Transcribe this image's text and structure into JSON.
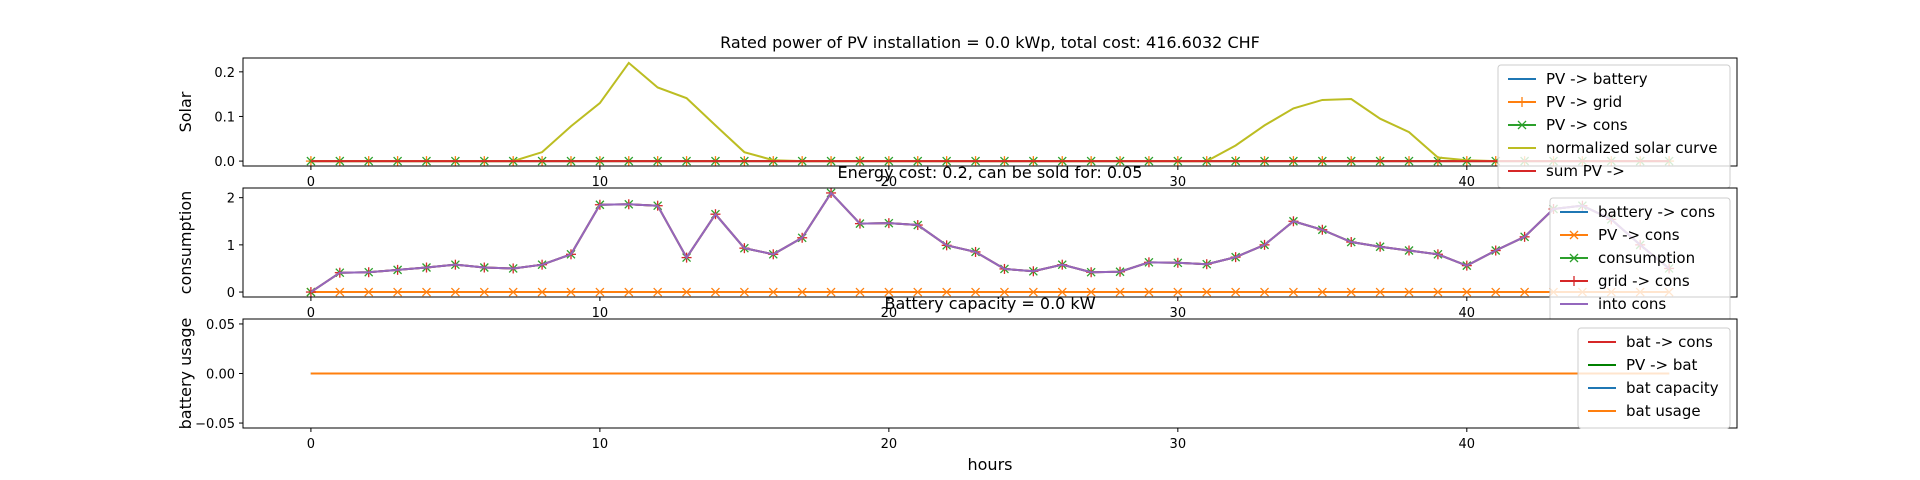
{
  "chart_data": [
    {
      "id": "solar",
      "type": "line",
      "title": "Rated power of PV installation = 0.0 kWp, total cost: 416.6032 CHF",
      "ylabel": "Solar",
      "xlabel": "",
      "xlim": [
        -2.35,
        49.35
      ],
      "ylim": [
        -0.011,
        0.231
      ],
      "xticks": [
        0,
        10,
        20,
        30,
        40
      ],
      "yticks": [
        0.0,
        0.1,
        0.2
      ],
      "ytick_labels": [
        "0.0",
        "0.1",
        "0.2"
      ],
      "legend": "upper-right",
      "series": [
        {
          "name": "PV -> battery",
          "color": "#1f77b4",
          "marker": "none",
          "y": [
            0,
            0,
            0,
            0,
            0,
            0,
            0,
            0,
            0,
            0,
            0,
            0,
            0,
            0,
            0,
            0,
            0,
            0,
            0,
            0,
            0,
            0,
            0,
            0,
            0,
            0,
            0,
            0,
            0,
            0,
            0,
            0,
            0,
            0,
            0,
            0,
            0,
            0,
            0,
            0,
            0,
            0,
            0,
            0,
            0,
            0,
            0,
            0
          ]
        },
        {
          "name": "PV -> grid",
          "color": "#ff7f0e",
          "marker": "plus",
          "y": [
            0,
            0,
            0,
            0,
            0,
            0,
            0,
            0,
            0,
            0,
            0,
            0,
            0,
            0,
            0,
            0,
            0,
            0,
            0,
            0,
            0,
            0,
            0,
            0,
            0,
            0,
            0,
            0,
            0,
            0,
            0,
            0,
            0,
            0,
            0,
            0,
            0,
            0,
            0,
            0,
            0,
            0,
            0,
            0,
            0,
            0,
            0,
            0
          ]
        },
        {
          "name": "PV -> cons",
          "color": "#2ca02c",
          "marker": "x",
          "y": [
            0,
            0,
            0,
            0,
            0,
            0,
            0,
            0,
            0,
            0,
            0,
            0,
            0,
            0,
            0,
            0,
            0,
            0,
            0,
            0,
            0,
            0,
            0,
            0,
            0,
            0,
            0,
            0,
            0,
            0,
            0,
            0,
            0,
            0,
            0,
            0,
            0,
            0,
            0,
            0,
            0,
            0,
            0,
            0,
            0,
            0,
            0,
            0
          ]
        },
        {
          "name": "normalized solar curve",
          "color": "#bcbd22",
          "marker": "none",
          "y": [
            0,
            0,
            0,
            0,
            0,
            0,
            0,
            0,
            0.02,
            0.078,
            0.13,
            0.22,
            0.165,
            0.141,
            0.08,
            0.02,
            0.002,
            0,
            0,
            0,
            0,
            0,
            0,
            0,
            0,
            0,
            0,
            0,
            0,
            0,
            0,
            0,
            0.035,
            0.08,
            0.118,
            0.137,
            0.139,
            0.095,
            0.065,
            0.008,
            0.002,
            0,
            0,
            0,
            0,
            0,
            0,
            0
          ]
        },
        {
          "name": "sum PV ->",
          "color": "#d62728",
          "marker": "none",
          "y": [
            0,
            0,
            0,
            0,
            0,
            0,
            0,
            0,
            0,
            0,
            0,
            0,
            0,
            0,
            0,
            0,
            0,
            0,
            0,
            0,
            0,
            0,
            0,
            0,
            0,
            0,
            0,
            0,
            0,
            0,
            0,
            0,
            0,
            0,
            0,
            0,
            0,
            0,
            0,
            0,
            0,
            0,
            0,
            0,
            0,
            0,
            0,
            0
          ]
        }
      ]
    },
    {
      "id": "consumption",
      "type": "line",
      "title": "Energy cost: 0.2, can be sold for: 0.05",
      "ylabel": "consumption",
      "xlabel": "",
      "xlim": [
        -2.35,
        49.35
      ],
      "ylim": [
        -0.105,
        2.205
      ],
      "xticks": [
        0,
        10,
        20,
        30,
        40
      ],
      "yticks": [
        0,
        1,
        2
      ],
      "ytick_labels": [
        "0",
        "1",
        "2"
      ],
      "legend": "upper-right",
      "series": [
        {
          "name": "battery -> cons",
          "color": "#1f77b4",
          "marker": "none",
          "y": [
            0,
            0,
            0,
            0,
            0,
            0,
            0,
            0,
            0,
            0,
            0,
            0,
            0,
            0,
            0,
            0,
            0,
            0,
            0,
            0,
            0,
            0,
            0,
            0,
            0,
            0,
            0,
            0,
            0,
            0,
            0,
            0,
            0,
            0,
            0,
            0,
            0,
            0,
            0,
            0,
            0,
            0,
            0,
            0,
            0,
            0,
            0,
            0
          ]
        },
        {
          "name": "PV -> cons",
          "color": "#ff7f0e",
          "marker": "x",
          "y": [
            0,
            0,
            0,
            0,
            0,
            0,
            0,
            0,
            0,
            0,
            0,
            0,
            0,
            0,
            0,
            0,
            0,
            0,
            0,
            0,
            0,
            0,
            0,
            0,
            0,
            0,
            0,
            0,
            0,
            0,
            0,
            0,
            0,
            0,
            0,
            0,
            0,
            0,
            0,
            0,
            0,
            0,
            0,
            0,
            0,
            0,
            0,
            0
          ]
        },
        {
          "name": "consumption",
          "color": "#2ca02c",
          "marker": "x",
          "y": [
            0,
            0.41,
            0.42,
            0.47,
            0.52,
            0.58,
            0.52,
            0.5,
            0.58,
            0.8,
            1.85,
            1.86,
            1.83,
            0.73,
            1.65,
            0.93,
            0.8,
            1.15,
            2.1,
            1.45,
            1.46,
            1.42,
            0.99,
            0.85,
            0.49,
            0.44,
            0.58,
            0.42,
            0.43,
            0.63,
            0.62,
            0.59,
            0.74,
            1.0,
            1.5,
            1.32,
            1.06,
            0.96,
            0.88,
            0.8,
            0.56,
            0.88,
            1.17,
            1.76,
            1.83,
            1.54,
            1.0,
            0.5
          ]
        },
        {
          "name": "grid -> cons",
          "color": "#d62728",
          "marker": "plus",
          "y": [
            0,
            0.41,
            0.42,
            0.47,
            0.52,
            0.58,
            0.52,
            0.5,
            0.58,
            0.8,
            1.85,
            1.86,
            1.83,
            0.73,
            1.65,
            0.93,
            0.8,
            1.15,
            2.1,
            1.45,
            1.46,
            1.42,
            0.99,
            0.85,
            0.49,
            0.44,
            0.58,
            0.42,
            0.43,
            0.63,
            0.62,
            0.59,
            0.74,
            1.0,
            1.5,
            1.32,
            1.06,
            0.96,
            0.88,
            0.8,
            0.56,
            0.88,
            1.17,
            1.76,
            1.83,
            1.54,
            1.0,
            0.5
          ]
        },
        {
          "name": "into cons",
          "color": "#9467bd",
          "marker": "none",
          "y": [
            0,
            0.41,
            0.42,
            0.47,
            0.52,
            0.58,
            0.52,
            0.5,
            0.58,
            0.8,
            1.85,
            1.86,
            1.83,
            0.73,
            1.65,
            0.93,
            0.8,
            1.15,
            2.1,
            1.45,
            1.46,
            1.42,
            0.99,
            0.85,
            0.49,
            0.44,
            0.58,
            0.42,
            0.43,
            0.63,
            0.62,
            0.59,
            0.74,
            1.0,
            1.5,
            1.32,
            1.06,
            0.96,
            0.88,
            0.8,
            0.56,
            0.88,
            1.17,
            1.76,
            1.83,
            1.54,
            1.0,
            0.5
          ]
        }
      ]
    },
    {
      "id": "battery",
      "type": "line",
      "title": "Battery capacity = 0.0 kW",
      "ylabel": "battery usage",
      "xlabel": "hours",
      "xlim": [
        -2.35,
        49.35
      ],
      "ylim": [
        -0.055,
        0.055
      ],
      "xticks": [
        0,
        10,
        20,
        30,
        40
      ],
      "yticks": [
        -0.05,
        0.0,
        0.05
      ],
      "ytick_labels": [
        "−0.05",
        "0.00",
        "0.05"
      ],
      "legend": "upper-right",
      "series": [
        {
          "name": "bat -> cons",
          "color": "#d62728",
          "marker": "none",
          "y": [
            0,
            0,
            0,
            0,
            0,
            0,
            0,
            0,
            0,
            0,
            0,
            0,
            0,
            0,
            0,
            0,
            0,
            0,
            0,
            0,
            0,
            0,
            0,
            0,
            0,
            0,
            0,
            0,
            0,
            0,
            0,
            0,
            0,
            0,
            0,
            0,
            0,
            0,
            0,
            0,
            0,
            0,
            0,
            0,
            0,
            0,
            0,
            0
          ]
        },
        {
          "name": "PV -> bat",
          "color": "#008000",
          "marker": "none",
          "y": [
            0,
            0,
            0,
            0,
            0,
            0,
            0,
            0,
            0,
            0,
            0,
            0,
            0,
            0,
            0,
            0,
            0,
            0,
            0,
            0,
            0,
            0,
            0,
            0,
            0,
            0,
            0,
            0,
            0,
            0,
            0,
            0,
            0,
            0,
            0,
            0,
            0,
            0,
            0,
            0,
            0,
            0,
            0,
            0,
            0,
            0,
            0,
            0
          ]
        },
        {
          "name": "bat capacity",
          "color": "#1f77b4",
          "marker": "none",
          "y": [
            0,
            0,
            0,
            0,
            0,
            0,
            0,
            0,
            0,
            0,
            0,
            0,
            0,
            0,
            0,
            0,
            0,
            0,
            0,
            0,
            0,
            0,
            0,
            0,
            0,
            0,
            0,
            0,
            0,
            0,
            0,
            0,
            0,
            0,
            0,
            0,
            0,
            0,
            0,
            0,
            0,
            0,
            0,
            0,
            0,
            0,
            0,
            0
          ]
        },
        {
          "name": "bat usage",
          "color": "#ff7f0e",
          "marker": "none",
          "y": [
            0,
            0,
            0,
            0,
            0,
            0,
            0,
            0,
            0,
            0,
            0,
            0,
            0,
            0,
            0,
            0,
            0,
            0,
            0,
            0,
            0,
            0,
            0,
            0,
            0,
            0,
            0,
            0,
            0,
            0,
            0,
            0,
            0,
            0,
            0,
            0,
            0,
            0,
            0,
            0,
            0,
            0,
            0,
            0,
            0,
            0,
            0,
            0
          ]
        }
      ]
    }
  ]
}
